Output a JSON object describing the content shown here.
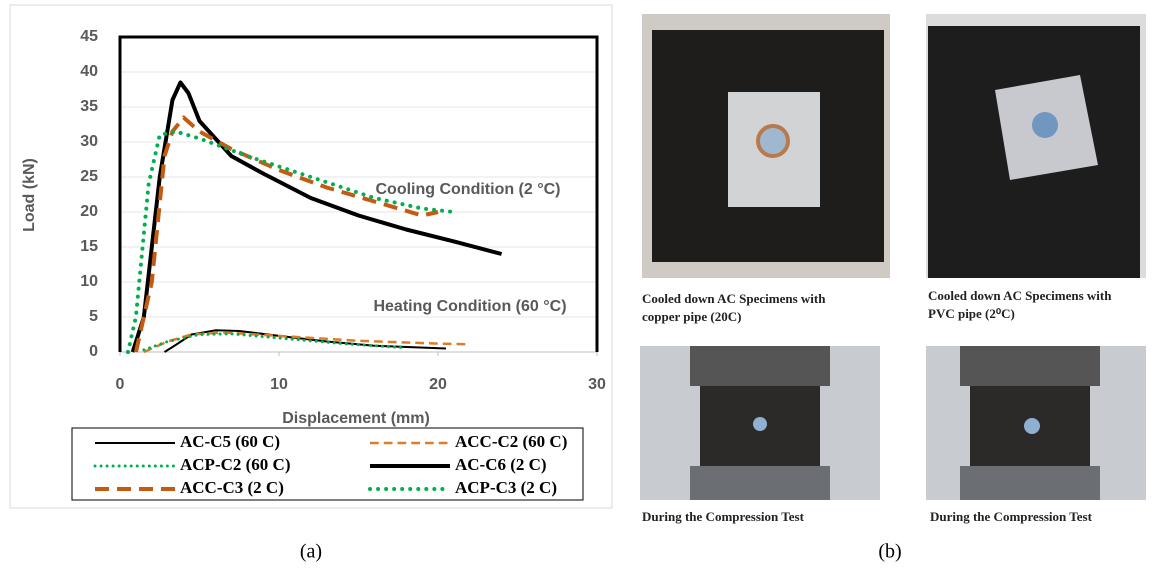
{
  "chart_data": {
    "type": "line",
    "x_label": "Displacement (mm)",
    "y_label": "Load (kN)",
    "xlim": [
      0,
      30
    ],
    "xticks": [
      0,
      10,
      20,
      30
    ],
    "ylim": [
      0,
      45
    ],
    "yticks": [
      0,
      5,
      10,
      15,
      20,
      25,
      30,
      35,
      40,
      45
    ],
    "grid": true,
    "legend": "bottom",
    "annotations": [
      {
        "text": "Cooling Condition (2 °C)",
        "color": "#00b0f0"
      },
      {
        "text": "Heating Condition (60 °C)",
        "color": "#c00000"
      }
    ],
    "series": [
      {
        "name": "AC-C5 (60 C)",
        "color": "#000000",
        "line_style": "solid",
        "line_width": 2,
        "x": [
          2.8,
          3.5,
          4.5,
          6,
          7.5,
          10,
          13,
          16,
          20.5
        ],
        "values": [
          0,
          1,
          2.5,
          3.1,
          3,
          2.3,
          1.5,
          0.9,
          0.5
        ]
      },
      {
        "name": "ACC-C2 (60 C)",
        "color": "#e07b28",
        "line_style": "dashed",
        "line_width": 2.5,
        "x": [
          1.5,
          3,
          4.5,
          6.5,
          10,
          15,
          20,
          22
        ],
        "values": [
          0,
          1.5,
          2.5,
          2.8,
          2.3,
          1.6,
          1.2,
          1.1
        ]
      },
      {
        "name": "ACP-C2 (60 C)",
        "color": "#00b050",
        "line_style": "dotted",
        "line_width": 3,
        "x": [
          1.5,
          3,
          5,
          7,
          10,
          14,
          18
        ],
        "values": [
          0.3,
          1.5,
          2.5,
          2.6,
          2,
          1.2,
          0.6
        ]
      },
      {
        "name": "AC-C6 (2 C)",
        "color": "#000000",
        "line_style": "solid",
        "line_width": 4,
        "x": [
          0.8,
          1.5,
          2.5,
          3.3,
          3.8,
          4.3,
          5,
          7,
          9,
          12,
          15,
          18,
          21,
          24
        ],
        "values": [
          0,
          5,
          25,
          36,
          38.5,
          37,
          33,
          28,
          25.5,
          22,
          19.5,
          17.5,
          15.8,
          14
        ]
      },
      {
        "name": "ACC-C3 (2 C)",
        "color": "#c55a11",
        "line_style": "dashed",
        "line_width": 4,
        "x": [
          1,
          2,
          2.8,
          3.3,
          4,
          5,
          7,
          10,
          13,
          16,
          19,
          20
        ],
        "values": [
          0,
          10,
          28,
          31.5,
          33.5,
          31.5,
          29,
          26,
          23.5,
          21.5,
          19.5,
          20
        ]
      },
      {
        "name": "ACP-C3 (2 C)",
        "color": "#00b050",
        "line_style": "dotted",
        "line_width": 4,
        "x": [
          0.5,
          1,
          1.8,
          2.5,
          3.5,
          5,
          8,
          12,
          16,
          19,
          21
        ],
        "values": [
          0,
          5,
          24,
          31,
          31.5,
          30.5,
          28,
          25,
          22,
          20.5,
          20
        ]
      }
    ]
  },
  "photos": [
    {
      "caption": [
        "Cooled down AC Specimens with",
        "copper pipe (20C)"
      ]
    },
    {
      "caption": [
        "Cooled down AC Specimens with",
        "PVC pipe (2⁰C)"
      ]
    },
    {
      "caption": [
        "During the Compression Test"
      ]
    },
    {
      "caption": [
        "During the Compression Test"
      ]
    }
  ],
  "panel_labels": [
    "(a)",
    "(b)"
  ]
}
